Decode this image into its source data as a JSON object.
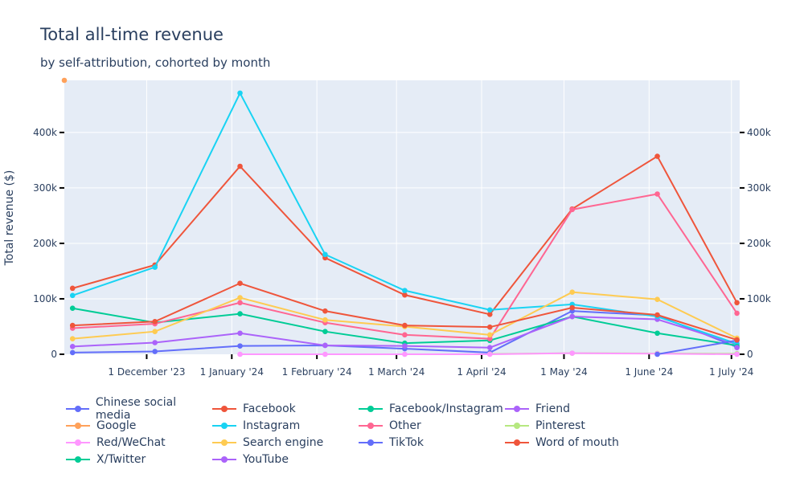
{
  "chart_data": {
    "type": "line",
    "title": "Total all-time revenue",
    "subtitle": "by self-attribution, cohorted by month",
    "ylabel": "Total revenue ($)",
    "xlabel": "",
    "xlim": [
      "2023-11-01",
      "2024-07-04"
    ],
    "ylim": [
      0,
      494000
    ],
    "grid": true,
    "legend_position": "bottom",
    "x_ticks": [
      {
        "date": "2023-12-01",
        "label": "1 December '23"
      },
      {
        "date": "2024-01-01",
        "label": "1 January '24"
      },
      {
        "date": "2024-02-01",
        "label": "1 February '24"
      },
      {
        "date": "2024-03-01",
        "label": "1 March '24"
      },
      {
        "date": "2024-04-01",
        "label": "1 April '24"
      },
      {
        "date": "2024-05-01",
        "label": "1 May '24"
      },
      {
        "date": "2024-06-01",
        "label": "1 June '24"
      },
      {
        "date": "2024-07-01",
        "label": "1 July '24"
      }
    ],
    "y_ticks": [
      {
        "value": 0,
        "label": "0"
      },
      {
        "value": 100000,
        "label": "100k"
      },
      {
        "value": 200000,
        "label": "200k"
      },
      {
        "value": 300000,
        "label": "300k"
      },
      {
        "value": 400000,
        "label": "400k"
      }
    ],
    "x": [
      "2023-11-04",
      "2023-12-04",
      "2024-01-04",
      "2024-02-04",
      "2024-03-04",
      "2024-04-04",
      "2024-05-04",
      "2024-06-04",
      "2024-07-03"
    ],
    "series": [
      {
        "name": "Chinese social media",
        "color": "#636efa",
        "values": [
          3000,
          5000,
          15000,
          16000,
          10000,
          3000,
          78000,
          70000,
          13000
        ]
      },
      {
        "name": "Facebook",
        "color": "#EF553B",
        "values": [
          119000,
          161000,
          339000,
          174000,
          107000,
          72000,
          262000,
          357000,
          93000
        ]
      },
      {
        "name": "Facebook/Instagram",
        "color": "#00cc96",
        "values": [
          83000,
          57000,
          73000,
          41000,
          20000,
          25000,
          68000,
          38000,
          16000
        ]
      },
      {
        "name": "Friend",
        "color": "#ab63fa",
        "values": [
          14000,
          21000,
          38000,
          16000,
          15000,
          12000,
          68000,
          63000,
          18000
        ]
      },
      {
        "name": "Google",
        "color": "#FFA15A",
        "values": [
          null,
          null,
          null,
          null,
          null,
          null,
          null,
          null,
          null
        ],
        "extra_point": {
          "date": "2023-11-01",
          "value": 494000
        }
      },
      {
        "name": "Instagram",
        "color": "#19d3f3",
        "values": [
          106000,
          157000,
          471000,
          180000,
          115000,
          80000,
          90000,
          68000,
          19000
        ]
      },
      {
        "name": "Other",
        "color": "#FF6692",
        "values": [
          47000,
          55000,
          93000,
          57000,
          35000,
          28000,
          261000,
          289000,
          74000
        ]
      },
      {
        "name": "Pinterest",
        "color": "#B6E880",
        "values": [
          null,
          null,
          null,
          null,
          null,
          500,
          2000,
          1500,
          1000
        ]
      },
      {
        "name": "Red/WeChat",
        "color": "#FF97FF",
        "values": [
          null,
          null,
          0,
          0,
          0,
          0,
          2000,
          1000,
          0
        ]
      },
      {
        "name": "Search engine",
        "color": "#FECB52",
        "values": [
          28000,
          41000,
          102000,
          62000,
          50000,
          35000,
          112000,
          99000,
          29000
        ]
      },
      {
        "name": "TikTok",
        "color": "#636efa",
        "values": [
          null,
          null,
          null,
          null,
          null,
          null,
          null,
          0,
          25000
        ]
      },
      {
        "name": "Word of mouth",
        "color": "#EF553B",
        "values": [
          52000,
          59000,
          128000,
          78000,
          52000,
          49000,
          84000,
          71000,
          26000
        ]
      },
      {
        "name": "X/Twitter",
        "color": "#00cc96",
        "values": [
          null,
          null,
          null,
          null,
          null,
          null,
          null,
          null,
          14000
        ]
      },
      {
        "name": "YouTube",
        "color": "#ab63fa",
        "values": [
          null,
          null,
          null,
          null,
          null,
          null,
          null,
          null,
          12000
        ]
      }
    ]
  },
  "colors": {
    "plot_bg": "#E5ECF6",
    "text": "#2a3f5f"
  }
}
